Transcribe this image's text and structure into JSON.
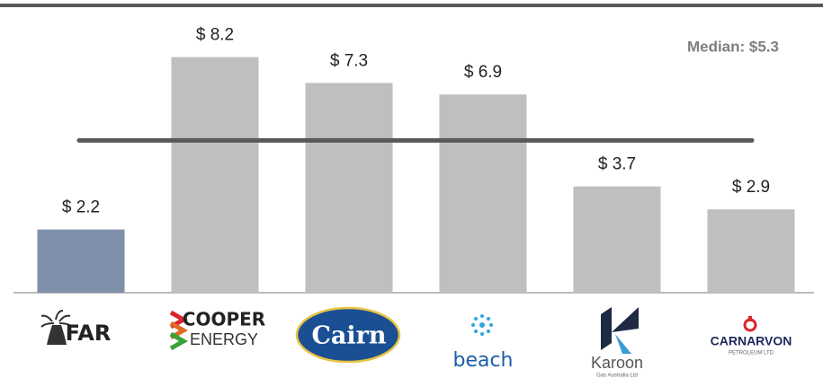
{
  "chart_data": {
    "type": "bar",
    "categories": [
      "FAR",
      "COOPER",
      "Cairn",
      "beach",
      "Karoon",
      "CARNARVON"
    ],
    "category_sublabels": [
      null,
      "ENERGY",
      null,
      null,
      "Gas Australia Ltd",
      "PETROLEUM LTD"
    ],
    "values": [
      2.2,
      8.2,
      7.3,
      6.9,
      3.7,
      2.9
    ],
    "value_labels": [
      "$ 2.2",
      "$ 8.2",
      "$ 7.3",
      "$ 6.9",
      "$ 3.7",
      "$ 2.9"
    ],
    "colors": [
      "#7f90aa",
      "#bfbfbf",
      "#bfbfbf",
      "#bfbfbf",
      "#bfbfbf",
      "#bfbfbf"
    ],
    "ylim": [
      0,
      10
    ],
    "median": 5.3,
    "median_label": "Median: $5.3",
    "median_color": "#595959"
  }
}
